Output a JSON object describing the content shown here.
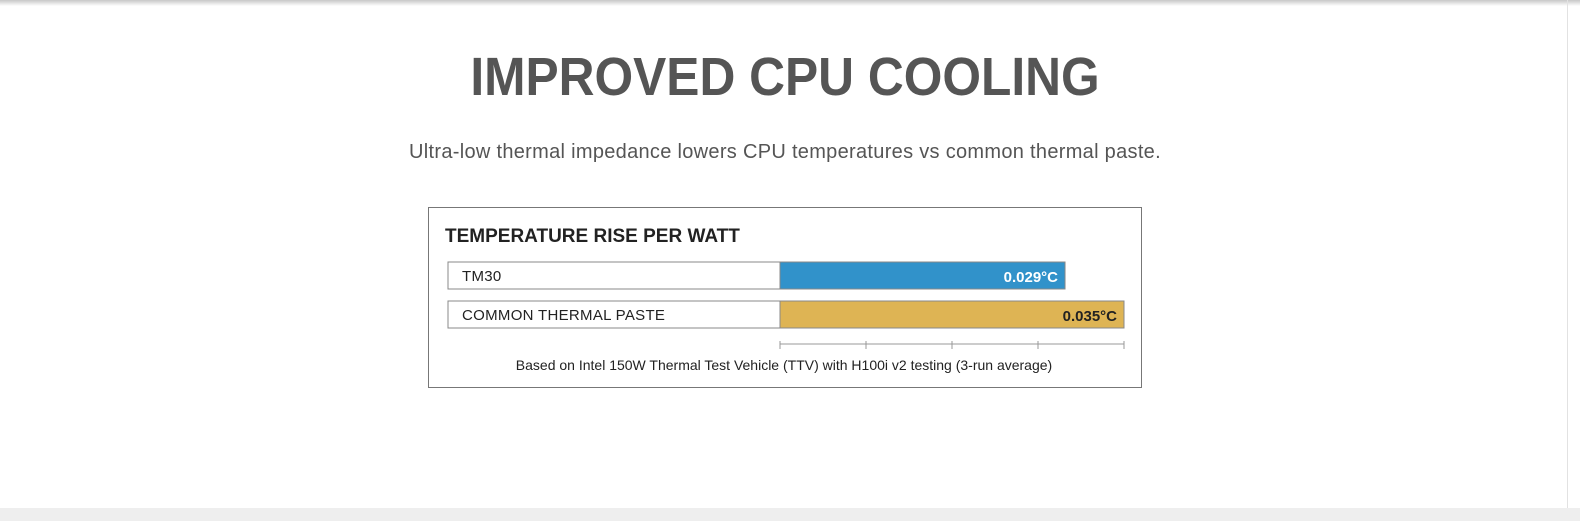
{
  "section": {
    "title": "IMPROVED CPU COOLING",
    "subtitle": "Ultra-low thermal impedance lowers CPU temperatures vs common thermal paste."
  },
  "chart_data": {
    "type": "bar",
    "orientation": "horizontal",
    "title": "TEMPERATURE RISE PER WATT",
    "categories": [
      "TM30",
      "COMMON THERMAL PASTE"
    ],
    "values": [
      0.029,
      0.035
    ],
    "value_labels": [
      "0.029°C",
      "0.035°C"
    ],
    "xlim": [
      0,
      0.035
    ],
    "tick_count": 5,
    "footnote": "Based on Intel 150W Thermal Test Vehicle (TTV) with H100i v2 testing (3-run average)",
    "colors": [
      "#3192ca",
      "#deb454"
    ],
    "label_colors": [
      "#ffffff",
      "#222222"
    ],
    "grid": false,
    "legend": "none"
  }
}
